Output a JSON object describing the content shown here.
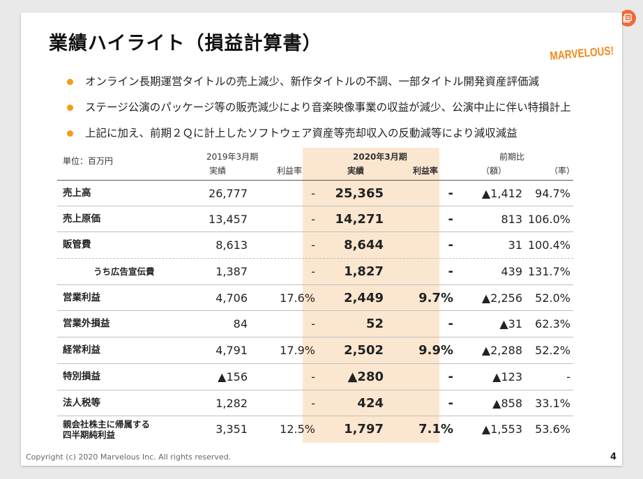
{
  "title": "業績ハイライト（損益計算書）",
  "logo_text": "MARVELOUS!",
  "bullets": [
    "オンライン長期運営タイトルの売上減少、新作タイトルの不調、一部タイトル開発資産評価減",
    "ステージ公演のパッケージ等の販売減少により音楽映像事業の収益が減少、公演中止に伴い特損計上",
    "上記に加え、前期２Ｑに計上したソフトウェア資産等売却収入の反動減等により減収減益"
  ],
  "table": {
    "unit": "単位：百万円",
    "group_prev": "2019年3月期",
    "group_curr": "2020年3月期",
    "group_diff": "前期比",
    "sub_actual": "実績",
    "sub_margin": "利益率",
    "sub_amount": "（額）",
    "sub_rate": "（率）",
    "rows": [
      {
        "label": "売上高",
        "prev": "26,777",
        "prev_margin": "-",
        "curr": "25,365",
        "curr_margin": "-",
        "diff": "▲1,412",
        "rate": "94.7%"
      },
      {
        "label": "売上原価",
        "prev": "13,457",
        "prev_margin": "-",
        "curr": "14,271",
        "curr_margin": "-",
        "diff": "813",
        "rate": "106.0%"
      },
      {
        "label": "販管費",
        "prev": "8,613",
        "prev_margin": "-",
        "curr": "8,644",
        "curr_margin": "-",
        "diff": "31",
        "rate": "100.4%"
      },
      {
        "label": "うち広告宣伝費",
        "prev": "1,387",
        "prev_margin": "-",
        "curr": "1,827",
        "curr_margin": "-",
        "diff": "439",
        "rate": "131.7%"
      },
      {
        "label": "営業利益",
        "prev": "4,706",
        "prev_margin": "17.6%",
        "curr": "2,449",
        "curr_margin": "9.7%",
        "diff": "▲2,256",
        "rate": "52.0%"
      },
      {
        "label": "営業外損益",
        "prev": "84",
        "prev_margin": "-",
        "curr": "52",
        "curr_margin": "-",
        "diff": "▲31",
        "rate": "62.3%"
      },
      {
        "label": "経常利益",
        "prev": "4,791",
        "prev_margin": "17.9%",
        "curr": "2,502",
        "curr_margin": "9.9%",
        "diff": "▲2,288",
        "rate": "52.2%"
      },
      {
        "label": "特別損益",
        "prev": "▲156",
        "prev_margin": "-",
        "curr": "▲280",
        "curr_margin": "-",
        "diff": "▲123",
        "rate": "-"
      },
      {
        "label": "法人税等",
        "prev": "1,282",
        "prev_margin": "-",
        "curr": "424",
        "curr_margin": "-",
        "diff": "▲858",
        "rate": "33.1%"
      },
      {
        "label_line1": "親会社株主に帰属する",
        "label_line2": "四半期純利益",
        "prev": "3,351",
        "prev_margin": "12.5%",
        "curr": "1,797",
        "curr_margin": "7.1%",
        "diff": "▲1,553",
        "rate": "53.6%"
      }
    ]
  },
  "footer": "Copyright (c) 2020 Marvelous Inc. All rights reserved.",
  "page_number": "4",
  "colors": {
    "accent": "#f39c1b",
    "highlight": "#fbe7d0",
    "logo": "#f08a1e",
    "corner": "#f26a36"
  }
}
